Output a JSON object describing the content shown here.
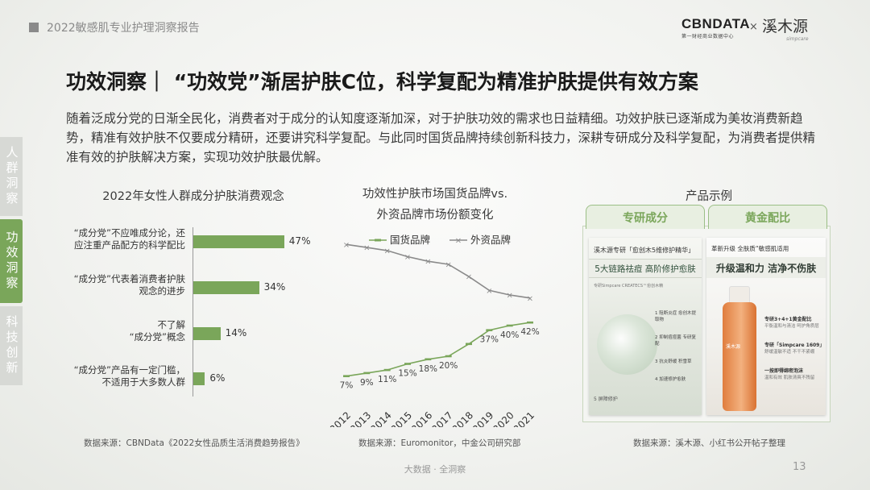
{
  "header": {
    "report_title": "2022敏感肌专业护理洞察报告",
    "logo_cbn": "CBNDATA",
    "logo_cbn_sub": "第一财经商业数据中心",
    "logo_x": "×",
    "logo_brand": "溪木源",
    "logo_brand_sub": "simpcare"
  },
  "headline": "功效洞察｜ “功效党”渐居护肤C位，科学复配为精准护肤提供有效方案",
  "intro": "随着泛成分党的日渐全民化，消费者对于成分的认知度逐渐加深，对于护肤功效的需求也日益精细。功效护肤已逐渐成为美妆消费新趋势，精准有效护肤不仅要成分精研，还要讲究科学复配。与此同时国货品牌持续创新科技力，深耕专研成分及科学复配，为消费者提供精准有效的护肤解决方案，实现功效护肤最优解。",
  "side_tabs": [
    {
      "label": "人群洞察",
      "active": false
    },
    {
      "label": "功效洞察",
      "active": true
    },
    {
      "label": "科技创新",
      "active": false
    }
  ],
  "chart_data": [
    {
      "type": "bar",
      "orientation": "horizontal",
      "title": "2022年女性人群成分护肤消费观念",
      "categories": [
        [
          "“成分党”不应唯成分论，还",
          "应注重产品配方的科学配比"
        ],
        [
          "“成分党”代表着消费者护肤",
          "观念的进步"
        ],
        [
          "不了解",
          "“成分党”概念"
        ],
        [
          "“成分党”产品有一定门槛，",
          "不适用于大多数人群"
        ]
      ],
      "values": [
        47,
        34,
        14,
        6
      ],
      "value_labels": [
        "47%",
        "34%",
        "14%",
        "6%"
      ],
      "xlim": [
        0,
        50
      ],
      "color": "#7aa65a"
    },
    {
      "type": "line",
      "title_lines": [
        "功效性护肤市场国货品牌vs.",
        "外资品牌市场份额变化"
      ],
      "x": [
        "2012",
        "2013",
        "2014",
        "2015",
        "2016",
        "2017",
        "2018",
        "2019",
        "2020",
        "2021"
      ],
      "series": [
        {
          "name": "国货品牌",
          "values": [
            7,
            9,
            11,
            15,
            18,
            20,
            28,
            37,
            40,
            42
          ],
          "labels": [
            "7%",
            "9%",
            "11%",
            "15%",
            "18%",
            "20%",
            "",
            "37%",
            "40%",
            "42%"
          ],
          "color": "#7aa65a",
          "marker": "dash"
        },
        {
          "name": "外资品牌",
          "values": [
            93,
            91,
            89,
            85,
            82,
            80,
            72,
            63,
            60,
            58
          ],
          "labels": [],
          "color": "#8a8a8a",
          "marker": "x"
        }
      ],
      "ylim": [
        0,
        100
      ],
      "legend": "top"
    }
  ],
  "product": {
    "title": "产品示例",
    "tabs": [
      "专研成分",
      "黄金配比"
    ],
    "card1": {
      "head": "溪木源专研「愈创木5维修护精华」",
      "band": "5大链路祛痘 高阶修护愈肤",
      "sub": "专研Simpcare CREATECS™愈创木精",
      "features": [
        "1 阻断炎症 愈创木提取物",
        "2 抑制痘痘菌 专研复配",
        "3 抗炎舒缓 积雪草",
        "4 加速修护愈肤"
      ],
      "foot": "5 屏障修护"
    },
    "card2": {
      "head": "革新升级 全肤质“敏感肌适用",
      "band": "升级温和力 洁净不伤肤",
      "bottle_label": "溪木源",
      "features": [
        {
          "title": "专研3+4+1黄金配比",
          "sub": "平衡温和与清洁 呵护角质层"
        },
        {
          "title": "专研「Simpcare 1609」",
          "sub": "舒缓温敏不适 不干不紧绷"
        },
        {
          "title": "一按即得绵密泡沫",
          "sub": "温和有效 肌肤清爽不残留"
        }
      ]
    }
  },
  "sources": {
    "left": "数据来源：CBNData《2022女性品质生活消费趋势报告》",
    "middle": "数据来源：Euromonitor，中金公司研究部",
    "right": "数据来源：溪木源、小红书公开帖子整理"
  },
  "footer": "大数据 · 全洞察",
  "page_number": "13"
}
